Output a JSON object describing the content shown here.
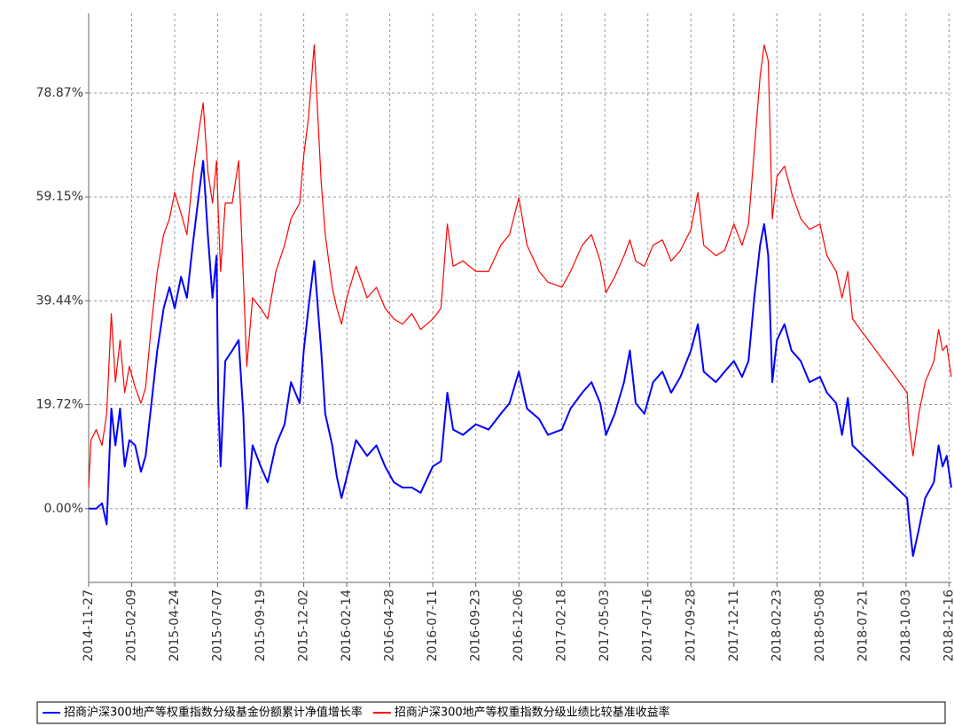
{
  "chart_data": {
    "type": "line",
    "xlim": [
      "2014-11-27",
      "2018-12-20"
    ],
    "xticks": [
      "2014-11-27",
      "2015-02-09",
      "2015-04-24",
      "2015-07-07",
      "2015-09-19",
      "2015-12-02",
      "2016-02-14",
      "2016-04-28",
      "2016-07-11",
      "2016-09-23",
      "2016-12-06",
      "2017-02-18",
      "2017-05-03",
      "2017-07-16",
      "2017-09-28",
      "2017-12-11",
      "2018-02-23",
      "2018-05-08",
      "2018-07-21",
      "2018-10-03",
      "2018-12-16"
    ],
    "ylim": [
      -14,
      94
    ],
    "yticks": [
      {
        "value": 0,
        "label": "0.00%"
      },
      {
        "value": 19.72,
        "label": "19.72%"
      },
      {
        "value": 39.44,
        "label": "39.44%"
      },
      {
        "value": 59.15,
        "label": "59.15%"
      },
      {
        "value": 78.87,
        "label": "78.87%"
      }
    ],
    "grid": true,
    "legend": "bottom",
    "x": [
      "2014-11-27",
      "2014-12-01",
      "2014-12-10",
      "2014-12-20",
      "2014-12-28",
      "2015-01-05",
      "2015-01-12",
      "2015-01-20",
      "2015-01-28",
      "2015-02-05",
      "2015-02-15",
      "2015-02-25",
      "2015-03-05",
      "2015-03-15",
      "2015-03-25",
      "2015-04-05",
      "2015-04-15",
      "2015-04-24",
      "2015-05-05",
      "2015-05-15",
      "2015-05-25",
      "2015-06-05",
      "2015-06-12",
      "2015-06-20",
      "2015-06-28",
      "2015-07-05",
      "2015-07-08",
      "2015-07-12",
      "2015-07-20",
      "2015-08-01",
      "2015-08-12",
      "2015-08-20",
      "2015-08-26",
      "2015-09-05",
      "2015-09-19",
      "2015-10-01",
      "2015-10-15",
      "2015-10-30",
      "2015-11-10",
      "2015-11-25",
      "2015-12-02",
      "2015-12-10",
      "2015-12-20",
      "2016-01-01",
      "2016-01-08",
      "2016-01-20",
      "2016-01-28",
      "2016-02-05",
      "2016-02-14",
      "2016-03-01",
      "2016-03-20",
      "2016-04-05",
      "2016-04-20",
      "2016-05-05",
      "2016-05-20",
      "2016-06-05",
      "2016-06-20",
      "2016-07-11",
      "2016-07-25",
      "2016-08-05",
      "2016-08-15",
      "2016-09-01",
      "2016-09-23",
      "2016-10-15",
      "2016-11-05",
      "2016-11-20",
      "2016-12-06",
      "2016-12-20",
      "2017-01-10",
      "2017-01-25",
      "2017-02-18",
      "2017-03-05",
      "2017-03-25",
      "2017-04-10",
      "2017-04-25",
      "2017-05-05",
      "2017-05-20",
      "2017-06-05",
      "2017-06-15",
      "2017-06-25",
      "2017-07-10",
      "2017-07-25",
      "2017-08-10",
      "2017-08-25",
      "2017-09-10",
      "2017-09-28",
      "2017-10-10",
      "2017-10-20",
      "2017-11-10",
      "2017-11-25",
      "2017-12-11",
      "2017-12-25",
      "2018-01-05",
      "2018-01-15",
      "2018-01-25",
      "2018-02-01",
      "2018-02-08",
      "2018-02-15",
      "2018-02-23",
      "2018-03-08",
      "2018-03-20",
      "2018-04-05",
      "2018-04-20",
      "2018-05-08",
      "2018-05-20",
      "2018-06-05",
      "2018-06-15",
      "2018-06-25",
      "2018-07-03",
      "2018-10-05",
      "2018-10-08",
      "2018-10-15",
      "2018-10-25",
      "2018-11-05",
      "2018-11-20",
      "2018-11-28",
      "2018-12-05",
      "2018-12-12",
      "2018-12-20"
    ],
    "series": [
      {
        "name": "招商沪深300地产等权重指数分级基金份额累计净值增长率",
        "color": "#0000ff",
        "values": [
          0,
          0,
          0,
          1,
          -3,
          19,
          12,
          19,
          8,
          13,
          12,
          7,
          10,
          20,
          30,
          38,
          42,
          38,
          44,
          40,
          50,
          60,
          66,
          52,
          40,
          48,
          20,
          8,
          28,
          30,
          32,
          18,
          0,
          12,
          8,
          5,
          12,
          16,
          24,
          20,
          30,
          38,
          47,
          30,
          18,
          12,
          6,
          2,
          6,
          13,
          10,
          12,
          8,
          5,
          4,
          4,
          3,
          8,
          9,
          22,
          15,
          14,
          16,
          15,
          18,
          20,
          26,
          19,
          17,
          14,
          15,
          19,
          22,
          24,
          20,
          14,
          18,
          24,
          30,
          20,
          18,
          24,
          26,
          22,
          25,
          30,
          35,
          26,
          24,
          26,
          28,
          25,
          28,
          40,
          50,
          54,
          48,
          24,
          32,
          35,
          30,
          28,
          24,
          25,
          22,
          20,
          14,
          21,
          12,
          2,
          -2,
          -9,
          -4,
          2,
          5,
          12,
          8,
          10,
          4
        ]
      },
      {
        "name": "招商沪深300地产等权重指数分级业绩比较基准收益率",
        "color": "#ff0000",
        "values": [
          4,
          13,
          15,
          12,
          18,
          37,
          24,
          32,
          22,
          27,
          23,
          20,
          23,
          35,
          45,
          52,
          55,
          60,
          56,
          52,
          63,
          72,
          77,
          64,
          58,
          66,
          56,
          45,
          58,
          58,
          66,
          44,
          27,
          40,
          38,
          36,
          45,
          50,
          55,
          58,
          67,
          74,
          88,
          62,
          52,
          42,
          38,
          35,
          40,
          46,
          40,
          42,
          38,
          36,
          35,
          37,
          34,
          36,
          38,
          54,
          46,
          47,
          45,
          45,
          50,
          52,
          59,
          50,
          45,
          43,
          42,
          45,
          50,
          52,
          47,
          41,
          44,
          48,
          51,
          47,
          46,
          50,
          51,
          47,
          49,
          53,
          60,
          50,
          48,
          49,
          54,
          50,
          54,
          68,
          82,
          88,
          85,
          55,
          63,
          65,
          60,
          55,
          53,
          54,
          48,
          45,
          40,
          45,
          36,
          22,
          16,
          10,
          18,
          24,
          28,
          34,
          30,
          31,
          25
        ]
      }
    ]
  }
}
